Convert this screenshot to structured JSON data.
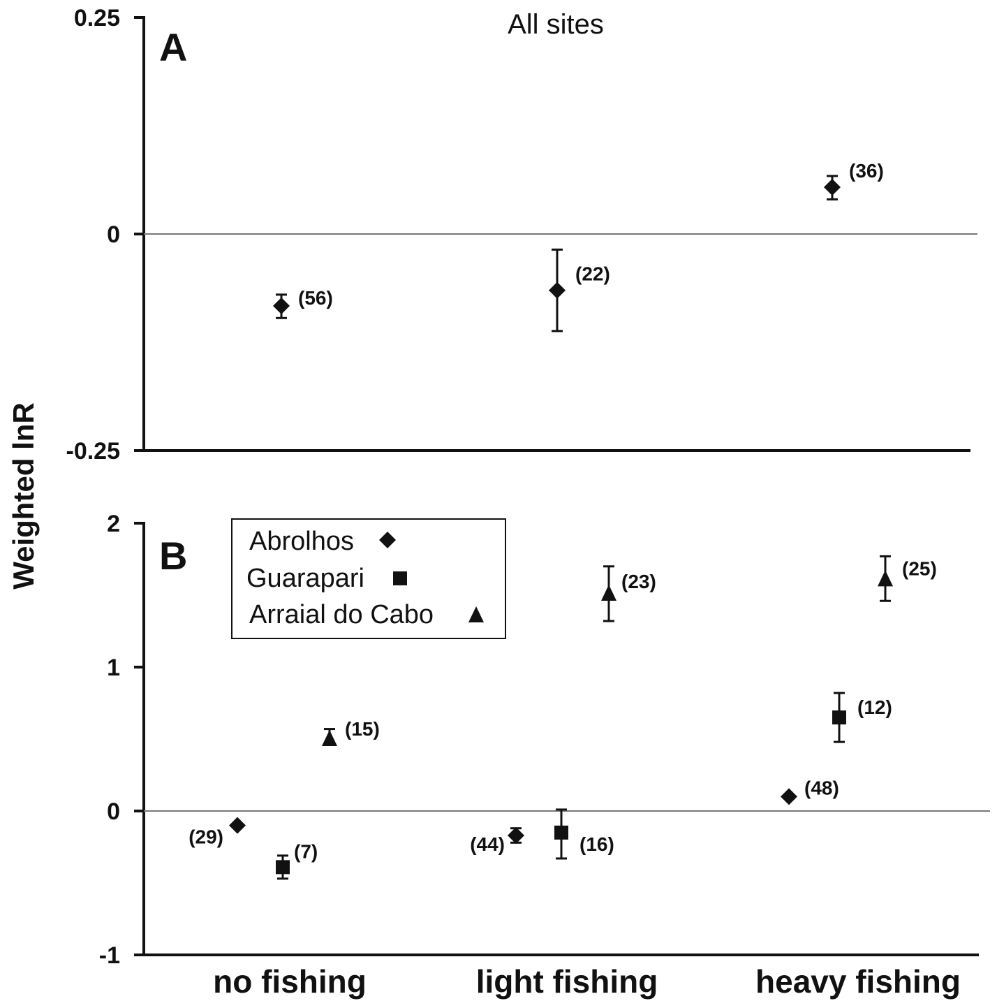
{
  "y_axis_label": "Weighted lnR",
  "categories": [
    "no fishing",
    "light fishing",
    "heavy fishing"
  ],
  "colors": {
    "ink": "#111111",
    "zero_line": "#777777"
  },
  "chart_data": [
    {
      "type": "scatter",
      "panel": "A",
      "title": "All sites",
      "ylabel": "Weighted lnR",
      "ylim": [
        -0.25,
        0.25
      ],
      "yticks": [
        "0.25",
        "0",
        "-0.25"
      ],
      "categories": [
        "no fishing",
        "light fishing",
        "heavy fishing"
      ],
      "series": [
        {
          "marker": "diamond",
          "points": [
            {
              "category": "no fishing",
              "y": -0.083,
              "err_low": -0.097,
              "err_high": -0.07,
              "n": "(56)"
            },
            {
              "category": "light fishing",
              "y": -0.065,
              "err_low": -0.112,
              "err_high": -0.018,
              "n": "(22)"
            },
            {
              "category": "heavy fishing",
              "y": 0.054,
              "err_low": 0.04,
              "err_high": 0.067,
              "n": "(36)"
            }
          ]
        }
      ]
    },
    {
      "type": "scatter",
      "panel": "B",
      "title": "",
      "ylabel": "Weighted lnR",
      "ylim": [
        -1,
        2
      ],
      "yticks": [
        "2",
        "1",
        "0",
        "-1"
      ],
      "categories": [
        "no fishing",
        "light fishing",
        "heavy fishing"
      ],
      "legend": {
        "position": "top-left"
      },
      "series": [
        {
          "name": "Abrolhos",
          "marker": "diamond",
          "points": [
            {
              "category": "no fishing",
              "y": -0.1,
              "n": "(29)"
            },
            {
              "category": "light fishing",
              "y": -0.17,
              "err_low": -0.22,
              "err_high": -0.12,
              "n": "(44)"
            },
            {
              "category": "heavy fishing",
              "y": 0.1,
              "n": "(48)"
            }
          ]
        },
        {
          "name": "Guarapari",
          "marker": "square",
          "points": [
            {
              "category": "no fishing",
              "y": -0.39,
              "err_low": -0.47,
              "err_high": -0.31,
              "n": "(7)"
            },
            {
              "category": "light fishing",
              "y": -0.15,
              "err_low": -0.33,
              "err_high": 0.01,
              "n": "(16)"
            },
            {
              "category": "heavy fishing",
              "y": 0.65,
              "err_low": 0.48,
              "err_high": 0.82,
              "n": "(12)"
            }
          ]
        },
        {
          "name": "Arraial do Cabo",
          "marker": "triangle",
          "points": [
            {
              "category": "no fishing",
              "y": 0.5,
              "err_low": 0.46,
              "err_high": 0.57,
              "n": "(15)"
            },
            {
              "category": "light fishing",
              "y": 1.51,
              "err_low": 1.32,
              "err_high": 1.7,
              "n": "(23)"
            },
            {
              "category": "heavy fishing",
              "y": 1.61,
              "err_low": 1.46,
              "err_high": 1.77,
              "n": "(25)"
            }
          ]
        }
      ]
    }
  ]
}
